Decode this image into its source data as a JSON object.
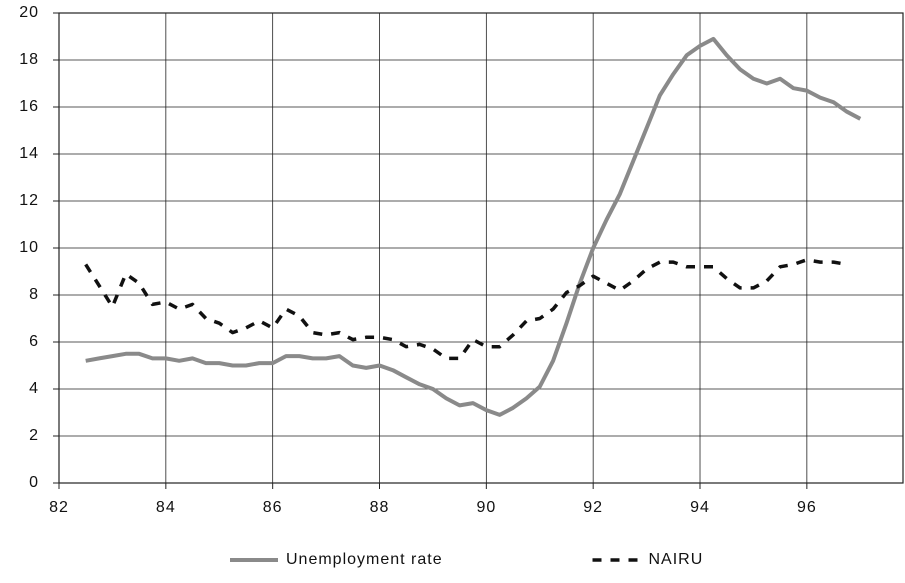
{
  "chart_data": {
    "type": "line",
    "x": [
      82.5,
      82.75,
      83,
      83.25,
      83.5,
      83.75,
      84,
      84.25,
      84.5,
      84.75,
      85,
      85.25,
      85.5,
      85.75,
      86,
      86.25,
      86.5,
      86.75,
      87,
      87.25,
      87.5,
      87.75,
      88,
      88.25,
      88.5,
      88.75,
      89,
      89.25,
      89.5,
      89.75,
      90,
      90.25,
      90.5,
      90.75,
      91,
      91.25,
      91.5,
      91.75,
      92,
      92.25,
      92.5,
      92.75,
      93,
      93.25,
      93.5,
      93.75,
      94,
      94.25,
      94.5,
      94.75,
      95,
      95.25,
      95.5,
      95.75,
      96,
      96.25,
      96.5,
      96.75,
      97
    ],
    "series": [
      {
        "name": "Unemployment rate",
        "color": "#8a8a8a",
        "dash": false,
        "values": [
          5.2,
          5.3,
          5.4,
          5.5,
          5.5,
          5.3,
          5.3,
          5.2,
          5.3,
          5.1,
          5.1,
          5.0,
          5.0,
          5.1,
          5.1,
          5.4,
          5.4,
          5.3,
          5.3,
          5.4,
          5.0,
          4.9,
          5.0,
          4.8,
          4.5,
          4.2,
          4.0,
          3.6,
          3.3,
          3.4,
          3.1,
          2.9,
          3.2,
          3.6,
          4.1,
          5.2,
          6.8,
          8.5,
          10.0,
          11.2,
          12.3,
          13.7,
          15.1,
          16.5,
          17.4,
          18.2,
          18.6,
          18.9,
          18.2,
          17.6,
          17.2,
          17.0,
          17.2,
          16.8,
          16.7,
          16.4,
          16.2,
          15.8,
          15.5
        ]
      },
      {
        "name": "NAIRU",
        "color": "#111111",
        "dash": true,
        "values": [
          9.3,
          8.4,
          7.5,
          8.9,
          8.5,
          7.6,
          7.7,
          7.4,
          7.6,
          7.0,
          6.8,
          6.4,
          6.6,
          6.9,
          6.6,
          7.4,
          7.1,
          6.4,
          6.3,
          6.4,
          6.1,
          6.2,
          6.2,
          6.1,
          5.8,
          5.9,
          5.7,
          5.3,
          5.3,
          6.1,
          5.8,
          5.8,
          6.3,
          6.9,
          7.0,
          7.4,
          8.1,
          8.4,
          8.8,
          8.5,
          8.2,
          8.6,
          9.1,
          9.4,
          9.4,
          9.2,
          9.2,
          9.2,
          8.7,
          8.3,
          8.3,
          8.6,
          9.2,
          9.3,
          9.5,
          9.4,
          9.4,
          9.3,
          null
        ]
      }
    ],
    "xlim": [
      82,
      97.8
    ],
    "xticks": [
      82,
      84,
      86,
      88,
      90,
      92,
      94,
      96
    ],
    "ylim": [
      0,
      20
    ],
    "yticks": [
      0,
      2,
      4,
      6,
      8,
      10,
      12,
      14,
      16,
      18,
      20
    ],
    "grid": true,
    "legend": "bottom"
  }
}
